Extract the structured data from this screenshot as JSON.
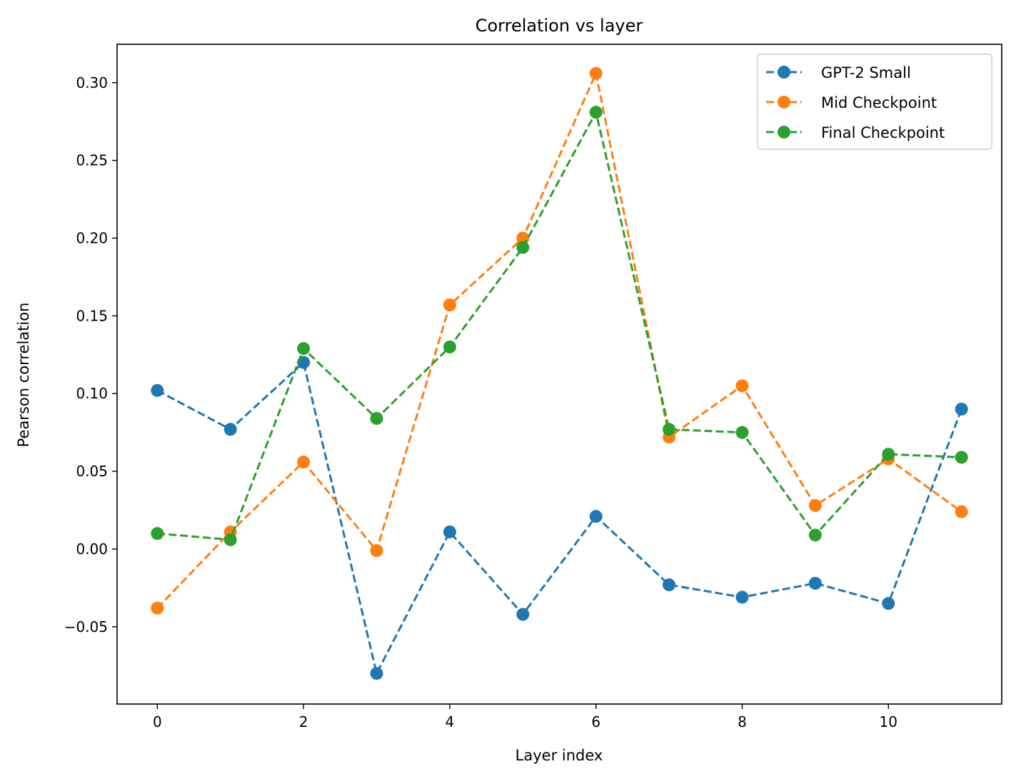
{
  "chart_data": {
    "type": "line",
    "title": "Correlation vs layer",
    "xlabel": "Layer index",
    "ylabel": "Pearson correlation",
    "x": [
      0,
      1,
      2,
      3,
      4,
      5,
      6,
      7,
      8,
      9,
      10,
      11
    ],
    "xlim": [
      -0.55,
      11.55
    ],
    "ylim": [
      -0.0997,
      0.3247
    ],
    "xticks": [
      0,
      2,
      4,
      6,
      8,
      10
    ],
    "xtick_labels": [
      "0",
      "2",
      "4",
      "6",
      "8",
      "10"
    ],
    "yticks": [
      -0.05,
      0.0,
      0.05,
      0.1,
      0.15,
      0.2,
      0.25,
      0.3
    ],
    "ytick_labels": [
      "−0.05",
      "0.00",
      "0.05",
      "0.10",
      "0.15",
      "0.20",
      "0.25",
      "0.30"
    ],
    "grid": false,
    "legend_position": "top-right",
    "line_style": "dashed",
    "marker": "circle",
    "series": [
      {
        "name": "GPT-2 Small",
        "color": "#1f77b4",
        "values": [
          0.102,
          0.077,
          0.12,
          -0.08,
          0.011,
          -0.042,
          0.021,
          -0.023,
          -0.031,
          -0.022,
          -0.035,
          0.09
        ]
      },
      {
        "name": "Mid Checkpoint",
        "color": "#ff7f0e",
        "values": [
          -0.038,
          0.011,
          0.056,
          -0.001,
          0.157,
          0.2,
          0.306,
          0.072,
          0.105,
          0.028,
          0.058,
          0.024
        ]
      },
      {
        "name": "Final Checkpoint",
        "color": "#2ca02c",
        "values": [
          0.01,
          0.006,
          0.129,
          0.084,
          0.13,
          0.194,
          0.281,
          0.077,
          0.075,
          0.009,
          0.061,
          0.059
        ]
      }
    ]
  }
}
